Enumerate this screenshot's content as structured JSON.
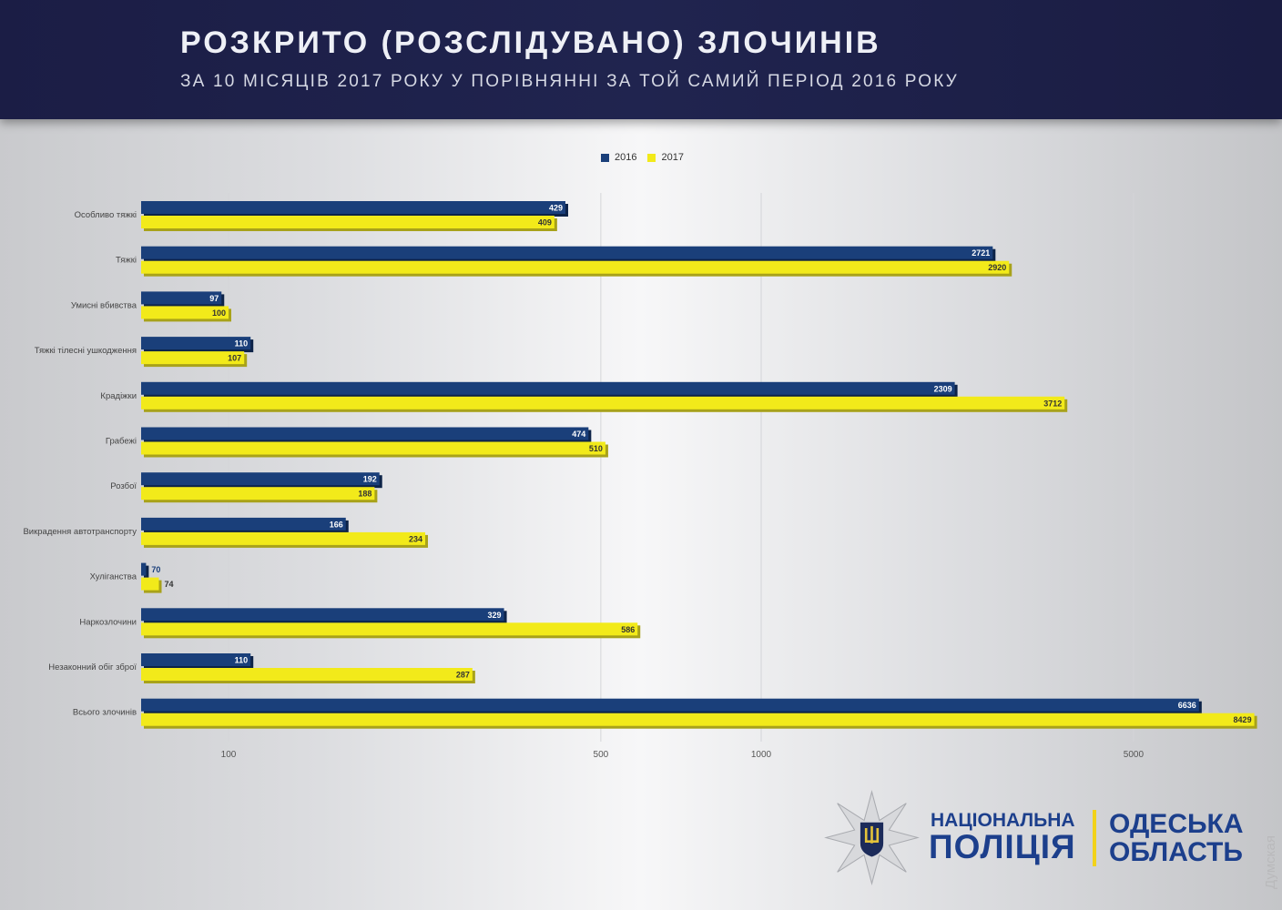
{
  "header": {
    "title": "РОЗКРИТО (РОЗСЛІДУВАНО) ЗЛОЧИНІВ",
    "subtitle": "ЗА 10 МІСЯЦІВ 2017 РОКУ У ПОРІВНЯННІ ЗА ТОЙ САМИЙ ПЕРІОД 2016 РОКУ"
  },
  "chart_data": {
    "type": "bar",
    "orientation": "horizontal",
    "xscale": "log",
    "xlim": [
      68,
      9000
    ],
    "title": "РОЗКРИТО (РОЗСЛІДУВАНО) ЗЛОЧИНІВ",
    "categories": [
      "Особливо тяжкі",
      "Тяжкі",
      "Умисні вбивства",
      "Тяжкі тілесні ушкодження",
      "Крадіжки",
      "Грабежі",
      "Розбої",
      "Викрадення автотранспорту",
      "Хуліганства",
      "Наркозлочини",
      "Незаконний обіг зброї",
      "Всього злочинів"
    ],
    "series": [
      {
        "name": "2016",
        "color": "#1a3f7a",
        "values": [
          429,
          2721,
          97,
          110,
          2309,
          474,
          192,
          166,
          70,
          329,
          110,
          6636
        ]
      },
      {
        "name": "2017",
        "color": "#f2ea1a",
        "values": [
          409,
          2920,
          100,
          107,
          3712,
          510,
          188,
          234,
          74,
          586,
          287,
          8429
        ]
      }
    ],
    "xticks": [
      100,
      500,
      1000,
      5000
    ],
    "legend": "top-center",
    "grid": true
  },
  "logo": {
    "line1": "НАЦІОНАЛЬНА",
    "line2": "ПОЛІЦІЯ",
    "region1": "ОДЕСЬКА",
    "region2": "ОБЛАСТЬ"
  },
  "watermark": "Думская"
}
